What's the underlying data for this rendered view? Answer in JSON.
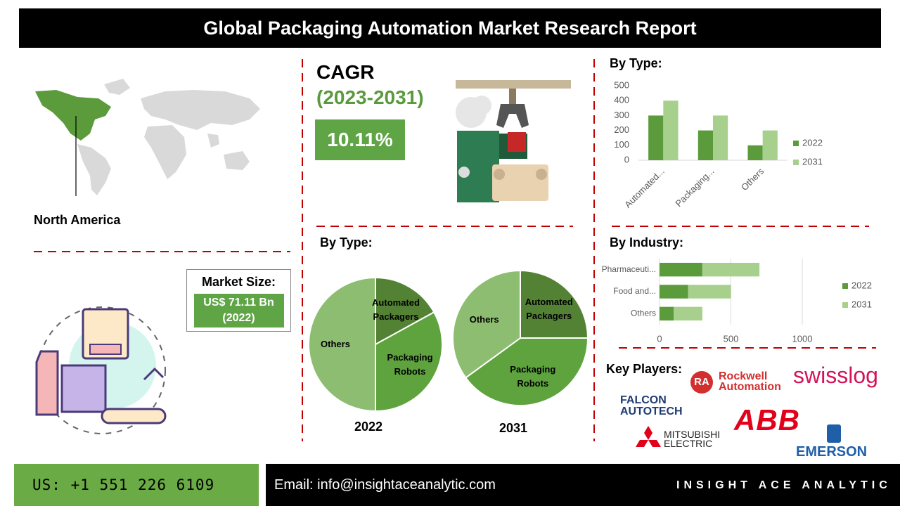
{
  "header": {
    "title": "Global Packaging Automation Market Research Report"
  },
  "region": "North America",
  "cagr": {
    "label": "CAGR",
    "period": "(2023-2031)",
    "value": "10.11%"
  },
  "market_size": {
    "label": "Market Size:",
    "value": "US$ 71.11 Bn",
    "year": "(2022)"
  },
  "pie_section": {
    "title": "By Type:"
  },
  "key_players": {
    "title": "Key Players:",
    "logos": [
      {
        "mark": "RA",
        "lines": [
          "Rockwell",
          "Automation"
        ]
      },
      {
        "lines": [
          "swisslog"
        ]
      },
      {
        "lines": [
          "FALCON",
          "AUTOTECH"
        ]
      },
      {
        "lines": [
          "ABB"
        ]
      },
      {
        "lines": [
          "MITSUBISHI",
          "ELECTRIC"
        ]
      },
      {
        "lines": [
          "EMERSON"
        ]
      }
    ]
  },
  "footer": {
    "phone": "US: +1 551 226 6109",
    "email": "Email: info@insightaceanalytic.com",
    "brand": "INSIGHT ACE ANALYTIC"
  },
  "chart_data": [
    {
      "type": "bar",
      "title": "By Type:",
      "categories": [
        "Automated...",
        "Packaging...",
        "Others"
      ],
      "series": [
        {
          "name": "2022",
          "color": "#5b9b3b",
          "values": [
            300,
            200,
            100
          ]
        },
        {
          "name": "2031",
          "color": "#a8d08d",
          "values": [
            400,
            300,
            200
          ]
        }
      ],
      "ylim": [
        0,
        500
      ],
      "yticks": [
        0,
        100,
        200,
        300,
        400,
        500
      ],
      "grid": false,
      "legend": "right"
    },
    {
      "type": "pie",
      "title": "2022",
      "categories": [
        "Automated Packagers",
        "Packaging Robots",
        "Others"
      ],
      "values": [
        17,
        33,
        50
      ],
      "colors": [
        "#548235",
        "#5ea33e",
        "#8dbd70"
      ]
    },
    {
      "type": "pie",
      "title": "2031",
      "categories": [
        "Automated Packagers",
        "Packaging Robots",
        "Others"
      ],
      "values": [
        25,
        40,
        35
      ],
      "colors": [
        "#548235",
        "#5ea33e",
        "#8dbd70"
      ]
    },
    {
      "type": "bar",
      "orientation": "horizontal",
      "stacked": true,
      "title": "By Industry:",
      "categories": [
        "Pharmaceuti...",
        "Food and...",
        "Others"
      ],
      "series": [
        {
          "name": "2022",
          "color": "#5b9b3b",
          "values": [
            300,
            200,
            100
          ]
        },
        {
          "name": "2031",
          "color": "#a8d08d",
          "values": [
            400,
            300,
            200
          ]
        }
      ],
      "xlim": [
        0,
        1000
      ],
      "xticks": [
        0,
        500,
        1000
      ],
      "grid": true,
      "legend": "right"
    }
  ]
}
